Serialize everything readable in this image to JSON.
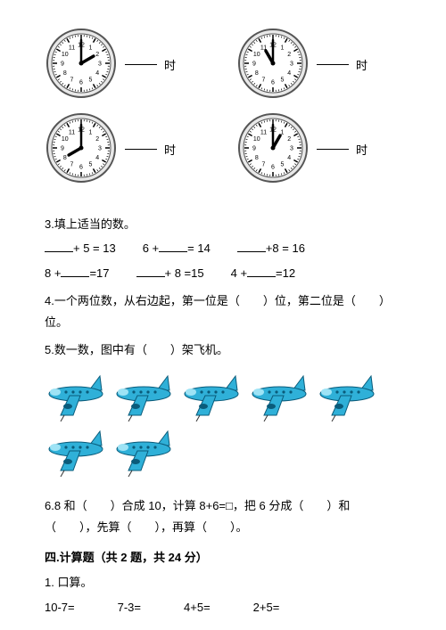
{
  "clocks": [
    {
      "hour_angle": 60,
      "minute_angle": 0,
      "label_suffix": "时"
    },
    {
      "hour_angle": -30,
      "minute_angle": 0,
      "label_suffix": "时"
    },
    {
      "hour_angle": -120,
      "minute_angle": 0,
      "label_suffix": "时"
    },
    {
      "hour_angle": 30,
      "minute_angle": 0,
      "label_suffix": "时"
    }
  ],
  "clock_style": {
    "outer_radius": 38,
    "outer_stroke": "#555555",
    "face_fill": "#ffffff",
    "tick_color": "#000000",
    "hand_color": "#000000",
    "number_fontsize": 7,
    "numbers": [
      "12",
      "1",
      "2",
      "3",
      "4",
      "5",
      "6",
      "7",
      "8",
      "9",
      "10",
      "11"
    ]
  },
  "q3": {
    "title": "3.填上适当的数。",
    "row1": [
      {
        "pre": "",
        "mid": "+ 5 = 13"
      },
      {
        "pre": "6 +",
        "mid": "= 14"
      },
      {
        "pre": "",
        "mid": "+8 = 16"
      }
    ],
    "row2": [
      {
        "pre": "8 +",
        "mid": "=17"
      },
      {
        "pre": "",
        "mid": "+ 8 =15"
      },
      {
        "pre": "4 +",
        "mid": "=12"
      }
    ]
  },
  "q4": "4.一个两位数，从右边起，第一位是（　　）位，第二位是（　　）位。",
  "q5": "5.数一数，图中有（　　）架飞机。",
  "planes": {
    "row1_count": 5,
    "row2_count": 2,
    "body_color": "#2fb0d8",
    "accent_color": "#0a5b7a",
    "light_color": "#9ee3f5"
  },
  "q6": "6.8 和（　　）合成 10，计算 8+6=□，把 6 分成（　　）和（　　），先算（　　），再算（　　）。",
  "section4": {
    "title": "四.计算题（共 2 题，共 24 分）",
    "sub1": "1. 口算。",
    "items": [
      "10-7=",
      "7-3=",
      "4+5=",
      "2+5="
    ]
  }
}
